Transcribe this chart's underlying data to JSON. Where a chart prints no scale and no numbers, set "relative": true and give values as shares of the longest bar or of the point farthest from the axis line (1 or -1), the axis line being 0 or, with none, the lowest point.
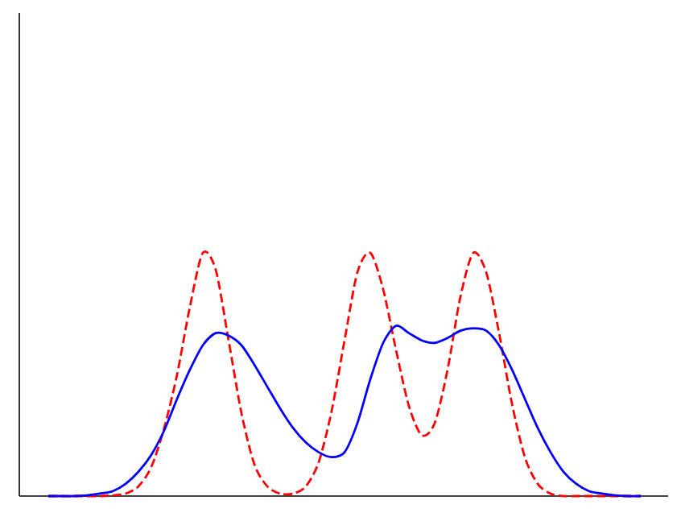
{
  "chart_data": {
    "type": "line",
    "relative": true,
    "categories": [
      null,
      null,
      null,
      null,
      null,
      null,
      null,
      null,
      null,
      null,
      null,
      null,
      null,
      null,
      null,
      null,
      null,
      null,
      null,
      null,
      null,
      null,
      null,
      null,
      null,
      null,
      null,
      null,
      null,
      null,
      null,
      null,
      null,
      null,
      null,
      null,
      null,
      null,
      null,
      null,
      null,
      null,
      null,
      null,
      null,
      null,
      null
    ],
    "series": [
      {
        "color": "#ff0000",
        "line_style": "dashed",
        "values": [
          0,
          0,
          0,
          0,
          0,
          0.003,
          0.01,
          0.04,
          0.12,
          0.28,
          0.5,
          0.78,
          1,
          0.93,
          0.64,
          0.34,
          0.13,
          0.04,
          0.01,
          0.01,
          0.04,
          0.14,
          0.35,
          0.64,
          0.92,
          1,
          0.85,
          0.6,
          0.37,
          0.25,
          0.3,
          0.52,
          0.82,
          1,
          0.92,
          0.67,
          0.38,
          0.16,
          0.05,
          0.01,
          0,
          0,
          0,
          0,
          0,
          0,
          0
        ]
      },
      {
        "color": "#0000ff",
        "line_style": "solid",
        "values": [
          0,
          0,
          0,
          0.003,
          0.01,
          0.02,
          0.05,
          0.1,
          0.17,
          0.27,
          0.4,
          0.52,
          0.62,
          0.67,
          0.66,
          0.62,
          0.54,
          0.45,
          0.36,
          0.28,
          0.22,
          0.18,
          0.16,
          0.18,
          0.3,
          0.48,
          0.63,
          0.7,
          0.67,
          0.64,
          0.63,
          0.65,
          0.68,
          0.69,
          0.68,
          0.62,
          0.52,
          0.4,
          0.28,
          0.18,
          0.1,
          0.05,
          0.02,
          0.01,
          0.003,
          0,
          0
        ]
      }
    ]
  }
}
